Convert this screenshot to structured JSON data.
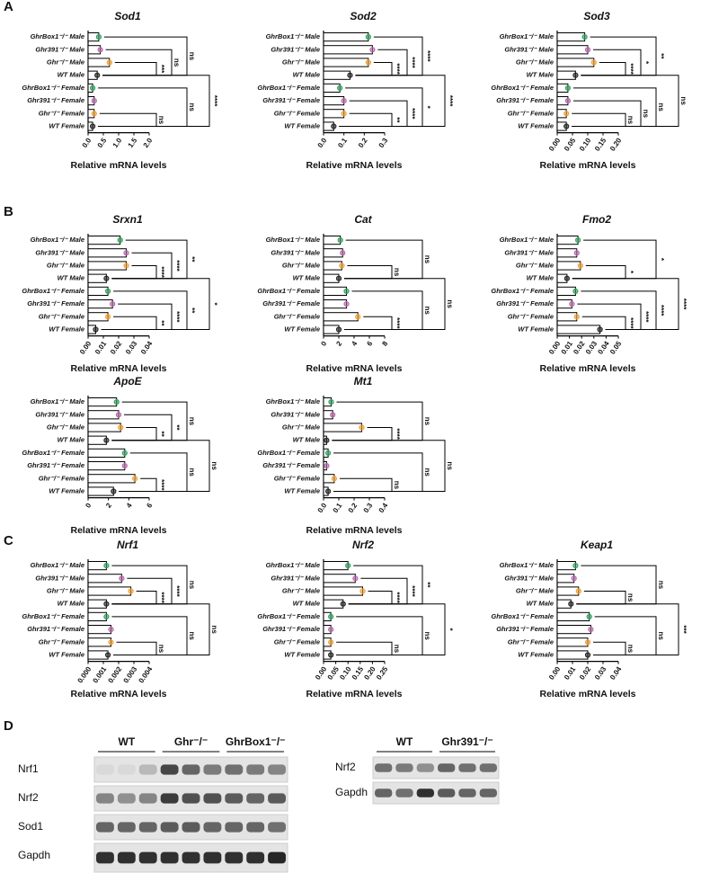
{
  "panel_labels": [
    "A",
    "B",
    "C",
    "D"
  ],
  "chart_data": [
    {
      "type": "hbar",
      "title": "Sod1",
      "xlabel": "Relative mRNA levels",
      "categories": [
        "GhrBox1⁻/⁻ Male",
        "Ghr391⁻/⁻ Male",
        "Ghr⁻/⁻ Male",
        "WT Male",
        "GhrBox1⁻/⁻ Female",
        "Ghr391⁻/⁻ Female",
        "Ghr⁻/⁻ Female",
        "WT Female"
      ],
      "colors": [
        "#2e9e5b",
        "#b565a7",
        "#f0a030",
        "#222222",
        "#2e9e5b",
        "#b565a7",
        "#f0a030",
        "#222222"
      ],
      "values": [
        0.35,
        0.4,
        0.7,
        0.3,
        0.15,
        0.2,
        0.2,
        0.15
      ],
      "xlim": [
        0,
        2
      ],
      "xticks": [
        {
          "value": 0,
          "label": "0.0"
        },
        0.5,
        {
          "value": 1,
          "label": "1.0"
        },
        1.5,
        {
          "value": 2,
          "label": "2.0"
        }
      ],
      "comparisons": [
        [
          2,
          3,
          "***"
        ],
        [
          1,
          3,
          "ns"
        ],
        [
          0,
          3,
          "ns"
        ],
        [
          6,
          7,
          "ns"
        ],
        [
          4,
          7,
          "ns"
        ],
        [
          3,
          7,
          "****"
        ]
      ]
    },
    {
      "type": "hbar",
      "title": "Sod2",
      "xlabel": "Relative mRNA levels",
      "categories": [
        "GhrBox1⁻/⁻ Male",
        "Ghr391⁻/⁻ Male",
        "Ghr⁻/⁻ Male",
        "WT Male",
        "GhrBox1⁻/⁻ Female",
        "Ghr391⁻/⁻ Female",
        "Ghr⁻/⁻ Female",
        "WT Female"
      ],
      "colors": [
        "#2e9e5b",
        "#b565a7",
        "#f0a030",
        "#222222",
        "#2e9e5b",
        "#b565a7",
        "#f0a030",
        "#222222"
      ],
      "values": [
        0.22,
        0.24,
        0.22,
        0.13,
        0.08,
        0.1,
        0.1,
        0.05
      ],
      "xlim": [
        0,
        0.3
      ],
      "xticks": [
        {
          "value": 0,
          "label": "0.0"
        },
        0.1,
        0.2,
        0.3
      ],
      "comparisons": [
        [
          2,
          3,
          "****"
        ],
        [
          1,
          3,
          "****"
        ],
        [
          0,
          3,
          "****"
        ],
        [
          6,
          7,
          "**"
        ],
        [
          5,
          7,
          "****"
        ],
        [
          4,
          7,
          "*"
        ],
        [
          3,
          7,
          "****"
        ]
      ]
    },
    {
      "type": "hbar",
      "title": "Sod3",
      "xlabel": "Relative mRNA levels",
      "categories": [
        "GhrBox1⁻/⁻ Male",
        "Ghr391⁻/⁻ Male",
        "Ghr⁻/⁻ Male",
        "WT Male",
        "GhrBox1⁻/⁻ Female",
        "Ghr391⁻/⁻ Female",
        "Ghr⁻/⁻ Female",
        "WT Female"
      ],
      "colors": [
        "#2e9e5b",
        "#b565a7",
        "#f0a030",
        "#222222",
        "#2e9e5b",
        "#b565a7",
        "#f0a030",
        "#222222"
      ],
      "values": [
        0.09,
        0.1,
        0.12,
        0.06,
        0.035,
        0.035,
        0.03,
        0.03
      ],
      "xlim": [
        0,
        0.2
      ],
      "xticks": [
        {
          "value": 0,
          "label": "0.00"
        },
        0.05,
        {
          "value": 0.1,
          "label": "0.10"
        },
        0.15,
        {
          "value": 0.2,
          "label": "0.20"
        }
      ],
      "comparisons": [
        [
          2,
          3,
          "****"
        ],
        [
          1,
          3,
          "*"
        ],
        [
          0,
          3,
          "**"
        ],
        [
          6,
          7,
          "ns"
        ],
        [
          5,
          7,
          "ns"
        ],
        [
          4,
          7,
          "ns"
        ],
        [
          3,
          7,
          "ns"
        ]
      ]
    },
    {
      "type": "hbar",
      "title": "Srxn1",
      "xlabel": "Relative mRNA levels",
      "categories": [
        "GhrBox1⁻/⁻ Male",
        "Ghr391⁻/⁻ Male",
        "Ghr⁻/⁻ Male",
        "WT Male",
        "GhrBox1⁻/⁻ Female",
        "Ghr391⁻/⁻ Female",
        "Ghr⁻/⁻ Female",
        "WT Female"
      ],
      "colors": [
        "#2e9e5b",
        "#b565a7",
        "#f0a030",
        "#222222",
        "#2e9e5b",
        "#b565a7",
        "#f0a030",
        "#222222"
      ],
      "values": [
        0.021,
        0.025,
        0.025,
        0.012,
        0.013,
        0.016,
        0.013,
        0.005
      ],
      "xlim": [
        0,
        0.04
      ],
      "xticks": [
        {
          "value": 0,
          "label": "0.00"
        },
        0.01,
        0.02,
        0.03,
        0.04
      ],
      "comparisons": [
        [
          2,
          3,
          "****"
        ],
        [
          1,
          3,
          "****"
        ],
        [
          0,
          3,
          "**"
        ],
        [
          6,
          7,
          "**"
        ],
        [
          5,
          7,
          "****"
        ],
        [
          4,
          7,
          "**"
        ],
        [
          3,
          7,
          "*"
        ]
      ]
    },
    {
      "type": "hbar",
      "title": "Cat",
      "xlabel": "Relative mRNA levels",
      "categories": [
        "GhrBox1⁻/⁻ Male",
        "Ghr391⁻/⁻ Male",
        "Ghr⁻/⁻ Male",
        "WT Male",
        "GhrBox1⁻/⁻ Female",
        "Ghr391⁻/⁻ Female",
        "Ghr⁻/⁻ Female",
        "WT Female"
      ],
      "colors": [
        "#2e9e5b",
        "#b565a7",
        "#f0a030",
        "#222222",
        "#2e9e5b",
        "#b565a7",
        "#f0a030",
        "#222222"
      ],
      "values": [
        2.2,
        2.5,
        2.4,
        2,
        3,
        3,
        4.5,
        2
      ],
      "xlim": [
        0,
        8
      ],
      "xticks": [
        0,
        2,
        4,
        6,
        8
      ],
      "comparisons": [
        [
          2,
          3,
          "ns"
        ],
        [
          0,
          3,
          "ns"
        ],
        [
          6,
          7,
          "****"
        ],
        [
          4,
          7,
          "ns"
        ],
        [
          3,
          7,
          "ns"
        ]
      ]
    },
    {
      "type": "hbar",
      "title": "Fmo2",
      "xlabel": "Relative mRNA levels",
      "categories": [
        "GhrBox1⁻/⁻ Male",
        "Ghr391⁻/⁻ Male",
        "Ghr⁻/⁻ Male",
        "WT Male",
        "GhrBox1⁻/⁻ Female",
        "Ghr391⁻/⁻ Female",
        "Ghr⁻/⁻ Female",
        "WT Female"
      ],
      "colors": [
        "#2e9e5b",
        "#b565a7",
        "#f0a030",
        "#222222",
        "#2e9e5b",
        "#b565a7",
        "#f0a030",
        "#222222"
      ],
      "values": [
        0.017,
        0.016,
        0.019,
        0.008,
        0.015,
        0.012,
        0.016,
        0.035
      ],
      "xlim": [
        0,
        0.05
      ],
      "xticks": [
        {
          "value": 0,
          "label": "0.00"
        },
        0.01,
        0.02,
        0.03,
        0.04,
        0.05
      ],
      "comparisons": [
        [
          2,
          3,
          "*"
        ],
        [
          0,
          3,
          "*"
        ],
        [
          6,
          7,
          "****"
        ],
        [
          5,
          7,
          "****"
        ],
        [
          4,
          7,
          "****"
        ],
        [
          3,
          7,
          "****"
        ]
      ]
    },
    {
      "type": "hbar",
      "title": "ApoE",
      "xlabel": "Relative mRNA levels",
      "categories": [
        "GhrBox1⁻/⁻ Male",
        "Ghr391⁻/⁻ Male",
        "Ghr⁻/⁻ Male",
        "WT Male",
        "GhrBox1⁻/⁻ Female",
        "Ghr391⁻/⁻ Female",
        "Ghr⁻/⁻ Female",
        "WT Female"
      ],
      "colors": [
        "#2e9e5b",
        "#b565a7",
        "#f0a030",
        "#222222",
        "#2e9e5b",
        "#b565a7",
        "#f0a030",
        "#222222"
      ],
      "values": [
        2.8,
        3,
        3.2,
        1.8,
        3.6,
        3.6,
        4.6,
        2.5
      ],
      "xlim": [
        0,
        6
      ],
      "xticks": [
        0,
        2,
        4,
        6
      ],
      "comparisons": [
        [
          2,
          3,
          "**"
        ],
        [
          1,
          3,
          "**"
        ],
        [
          0,
          3,
          "ns"
        ],
        [
          6,
          7,
          "****"
        ],
        [
          4,
          7,
          "ns"
        ],
        [
          3,
          7,
          "ns"
        ]
      ]
    },
    {
      "type": "hbar",
      "title": "Mt1",
      "xlabel": "Relative mRNA levels",
      "categories": [
        "GhrBox1⁻/⁻ Male",
        "Ghr391⁻/⁻ Male",
        "Ghr⁻/⁻ Male",
        "WT Male",
        "GhrBox1⁻/⁻ Female",
        "Ghr391⁻/⁻ Female",
        "Ghr⁻/⁻ Female",
        "WT Female"
      ],
      "colors": [
        "#2e9e5b",
        "#b565a7",
        "#f0a030",
        "#222222",
        "#2e9e5b",
        "#b565a7",
        "#f0a030",
        "#222222"
      ],
      "values": [
        0.05,
        0.06,
        0.25,
        0.02,
        0.03,
        0.02,
        0.07,
        0.03
      ],
      "xlim": [
        0,
        0.4
      ],
      "xticks": [
        {
          "value": 0,
          "label": "0.0"
        },
        0.1,
        0.2,
        0.3,
        0.4
      ],
      "comparisons": [
        [
          2,
          3,
          "****"
        ],
        [
          0,
          3,
          "ns"
        ],
        [
          6,
          7,
          "ns"
        ],
        [
          4,
          7,
          "ns"
        ],
        [
          3,
          7,
          "ns"
        ]
      ]
    },
    {
      "type": "hbar",
      "title": "Nrf1",
      "xlabel": "Relative mRNA levels",
      "categories": [
        "GhrBox1⁻/⁻ Male",
        "Ghr391⁻/⁻ Male",
        "Ghr⁻/⁻ Male",
        "WT Male",
        "GhrBox1⁻/⁻ Female",
        "Ghr391⁻/⁻ Female",
        "Ghr⁻/⁻ Female",
        "WT Female"
      ],
      "colors": [
        "#2e9e5b",
        "#b565a7",
        "#f0a030",
        "#222222",
        "#2e9e5b",
        "#b565a7",
        "#f0a030",
        "#222222"
      ],
      "values": [
        0.0012,
        0.0022,
        0.0028,
        0.0012,
        0.0012,
        0.0015,
        0.0015,
        0.0013
      ],
      "xlim": [
        0,
        0.004
      ],
      "xticks": [
        {
          "value": 0,
          "label": "0.000"
        },
        0.001,
        0.002,
        0.003,
        0.004
      ],
      "comparisons": [
        [
          2,
          3,
          "****"
        ],
        [
          1,
          3,
          "****"
        ],
        [
          0,
          3,
          "ns"
        ],
        [
          6,
          7,
          "ns"
        ],
        [
          4,
          7,
          "ns"
        ],
        [
          3,
          7,
          "ns"
        ]
      ]
    },
    {
      "type": "hbar",
      "title": "Nrf2",
      "xlabel": "Relative mRNA levels",
      "categories": [
        "GhrBox1⁻/⁻ Male",
        "Ghr391⁻/⁻ Male",
        "Ghr⁻/⁻ Male",
        "WT Male",
        "GhrBox1⁻/⁻ Female",
        "Ghr391⁻/⁻ Female",
        "Ghr⁻/⁻ Female",
        "WT Female"
      ],
      "colors": [
        "#2e9e5b",
        "#b565a7",
        "#f0a030",
        "#222222",
        "#2e9e5b",
        "#b565a7",
        "#f0a030",
        "#222222"
      ],
      "values": [
        0.1,
        0.13,
        0.16,
        0.08,
        0.03,
        0.03,
        0.03,
        0.03
      ],
      "xlim": [
        0,
        0.25
      ],
      "xticks": [
        {
          "value": 0,
          "label": "0.00"
        },
        0.05,
        {
          "value": 0.1,
          "label": "0.10"
        },
        0.15,
        {
          "value": 0.2,
          "label": "0.20"
        },
        0.25
      ],
      "comparisons": [
        [
          2,
          3,
          "****"
        ],
        [
          1,
          3,
          "****"
        ],
        [
          0,
          3,
          "**"
        ],
        [
          6,
          7,
          "ns"
        ],
        [
          4,
          7,
          "ns"
        ],
        [
          3,
          7,
          "*"
        ]
      ]
    },
    {
      "type": "hbar",
      "title": "Keap1",
      "xlabel": "Relative mRNA levels",
      "categories": [
        "GhrBox1⁻/⁻ Male",
        "Ghr391⁻/⁻ Male",
        "Ghr⁻/⁻ Male",
        "WT Male",
        "GhrBox1⁻/⁻ Female",
        "Ghr391⁻/⁻ Female",
        "Ghr⁻/⁻ Female",
        "WT Female"
      ],
      "colors": [
        "#2e9e5b",
        "#b565a7",
        "#f0a030",
        "#222222",
        "#2e9e5b",
        "#b565a7",
        "#f0a030",
        "#222222"
      ],
      "values": [
        0.012,
        0.011,
        0.014,
        0.009,
        0.021,
        0.022,
        0.02,
        0.02
      ],
      "xlim": [
        0,
        0.04
      ],
      "xticks": [
        {
          "value": 0,
          "label": "0.00"
        },
        0.01,
        0.02,
        0.03,
        0.04
      ],
      "comparisons": [
        [
          2,
          3,
          "ns"
        ],
        [
          0,
          3,
          "ns"
        ],
        [
          6,
          7,
          "ns"
        ],
        [
          4,
          7,
          "ns"
        ],
        [
          3,
          7,
          "***"
        ]
      ]
    }
  ],
  "blot": {
    "left_groups": [
      "WT",
      "Ghr⁻/⁻",
      "GhrBox1⁻/⁻"
    ],
    "left_rows": [
      "Nrf1",
      "Nrf2",
      "Sod1",
      "Gapdh"
    ],
    "right_groups": [
      "WT",
      "Ghr391⁻/⁻"
    ],
    "right_rows": [
      "Nrf2",
      "Gapdh"
    ]
  }
}
